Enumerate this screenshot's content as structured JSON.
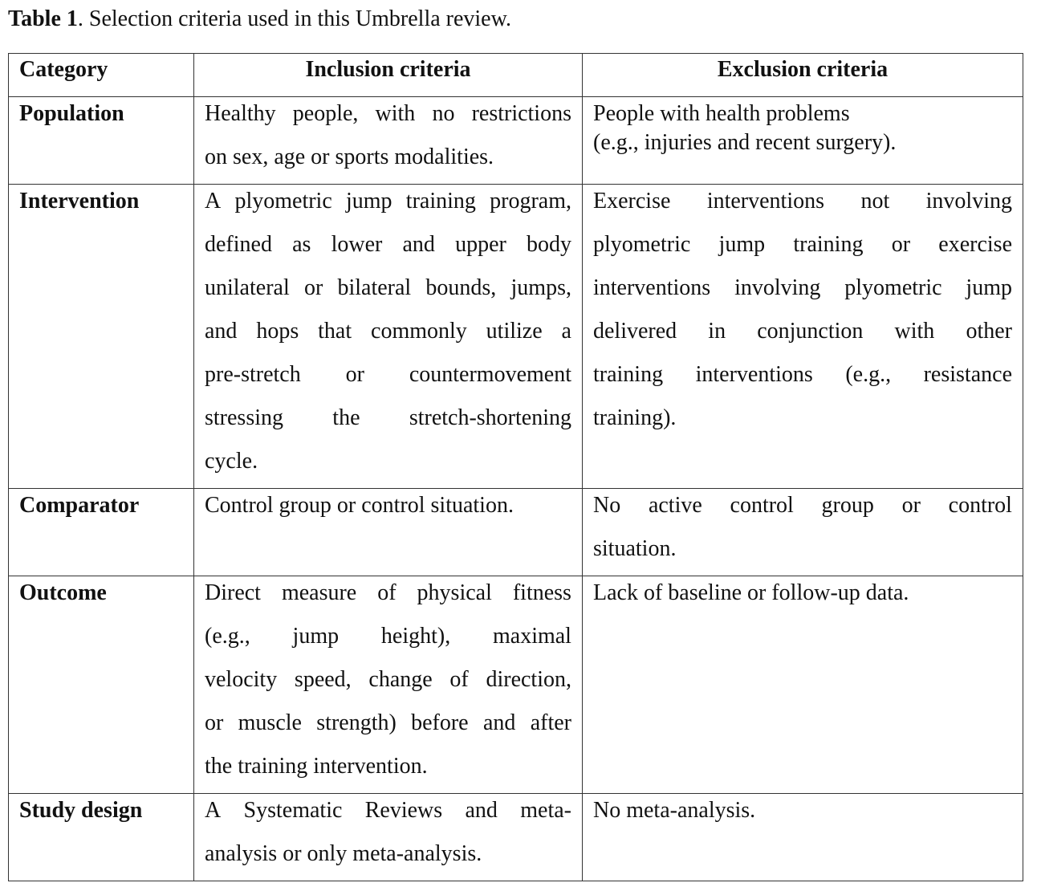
{
  "caption": {
    "label": "Table 1",
    "text": ". Selection criteria used in this Umbrella review."
  },
  "headers": [
    "Category",
    "Inclusion criteria",
    "Exclusion criteria"
  ],
  "rows": [
    {
      "category": "Population",
      "inclusion": [
        "Healthy people, with no restrictions",
        "on sex, age or sports modalities."
      ],
      "exclusion": [
        "People with health problems",
        "(e.g., injuries and recent surgery)."
      ]
    },
    {
      "category": "Intervention",
      "inclusion": [
        "A plyometric jump training program,",
        "defined as lower and upper body",
        "unilateral or bilateral bounds, jumps,",
        "and hops that commonly utilize a",
        "pre-stretch or countermovement",
        "stressing the stretch-shortening",
        "cycle."
      ],
      "exclusion": [
        "Exercise interventions not involving",
        "plyometric jump training or exercise",
        "interventions involving plyometric jump",
        "delivered in conjunction with other",
        "training interventions (e.g., resistance",
        "training)."
      ]
    },
    {
      "category": "Comparator",
      "inclusion": [
        "Control group or control situation."
      ],
      "exclusion": [
        "No active control group or control",
        "situation."
      ]
    },
    {
      "category": "Outcome",
      "inclusion": [
        "Direct measure of physical fitness",
        "(e.g., jump height), maximal",
        "velocity speed, change of direction,",
        "or muscle strength) before and after",
        "the training intervention."
      ],
      "exclusion": [
        "Lack of baseline or follow-up data."
      ]
    },
    {
      "category": "Study design",
      "inclusion": [
        "A Systematic Reviews and meta-",
        "analysis or only meta-analysis."
      ],
      "exclusion": [
        "No meta-analysis."
      ]
    }
  ]
}
